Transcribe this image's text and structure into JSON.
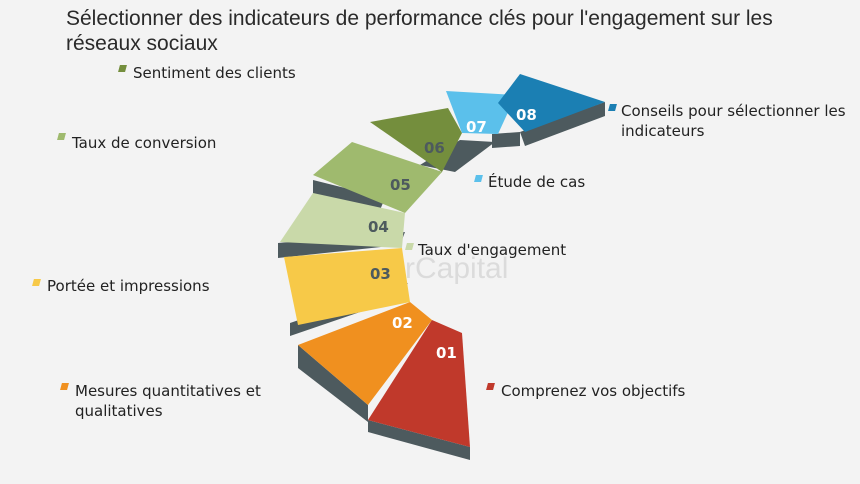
{
  "title": "Sélectionner des indicateurs de performance clés pour l'engagement sur les réseaux sociaux",
  "watermark": "FasterCapital",
  "steps": [
    {
      "num": "01",
      "label": "Comprenez vos objectifs",
      "color": "#c0392b"
    },
    {
      "num": "02",
      "label": "Mesures quantitatives et qualitatives",
      "color": "#f0901f"
    },
    {
      "num": "03",
      "label": "Portée et impressions",
      "color": "#f7c948"
    },
    {
      "num": "04",
      "label": "Taux d'engagement",
      "color": "#c9d9a9"
    },
    {
      "num": "05",
      "label": "Taux de conversion",
      "color": "#9fba6e"
    },
    {
      "num": "06",
      "label": "Sentiment des clients",
      "color": "#748e3d"
    },
    {
      "num": "07",
      "label": "Étude de cas",
      "color": "#5bc0eb"
    },
    {
      "num": "08",
      "label": "Conseils pour sélectionner les indicateurs",
      "color": "#1b7fb3"
    }
  ],
  "side_color": "#4d5a5e"
}
